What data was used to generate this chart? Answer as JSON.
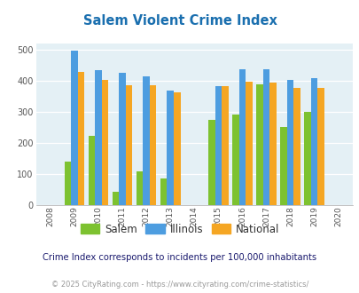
{
  "title": "Salem Violent Crime Index",
  "years": [
    2009,
    2010,
    2011,
    2012,
    2013,
    2015,
    2016,
    2017,
    2018,
    2019
  ],
  "salem": [
    140,
    223,
    43,
    108,
    85,
    275,
    293,
    390,
    253,
    300
  ],
  "illinois": [
    498,
    435,
    428,
    415,
    370,
    383,
    438,
    438,
    405,
    410
  ],
  "national": [
    430,
    405,
    387,
    387,
    365,
    383,
    397,
    394,
    379,
    379
  ],
  "salem_color": "#7dc230",
  "illinois_color": "#4d9de0",
  "national_color": "#f5a623",
  "bg_color": "#e4f0f5",
  "title_color": "#1a6faf",
  "subtitle": "Crime Index corresponds to incidents per 100,000 inhabitants",
  "footer": "© 2025 CityRating.com - https://www.cityrating.com/crime-statistics/",
  "ylim": [
    0,
    520
  ],
  "yticks": [
    0,
    100,
    200,
    300,
    400,
    500
  ],
  "bar_width": 0.28,
  "xlim_left": 2007.4,
  "xlim_right": 2020.6,
  "subtitle_color": "#1a1a6e",
  "footer_color": "#999999"
}
